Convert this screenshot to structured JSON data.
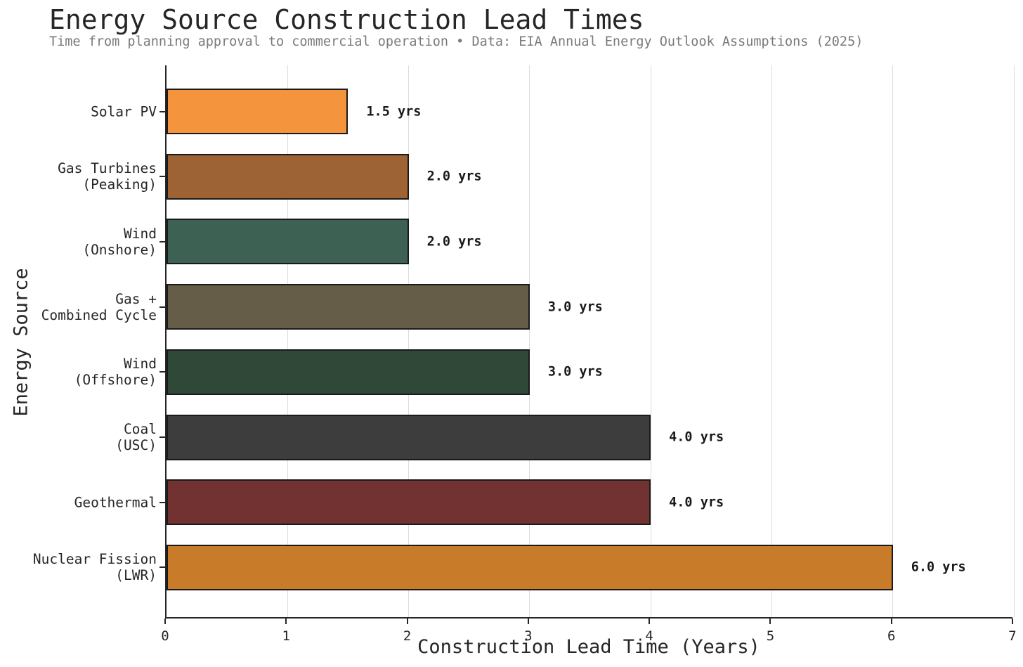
{
  "chart_data": {
    "type": "bar",
    "orientation": "horizontal",
    "title": "Energy Source Construction Lead Times",
    "subtitle": "Time from planning approval to commercial operation • Data: EIA Annual Energy Outlook Assumptions (2025)",
    "xlabel": "Construction Lead Time (Years)",
    "ylabel": "Energy Source",
    "xlim": [
      0,
      7
    ],
    "xticks": [
      0,
      1,
      2,
      3,
      4,
      5,
      6,
      7
    ],
    "grid": true,
    "legend": "none",
    "categories": [
      "Solar PV",
      "Gas Turbines\n(Peaking)",
      "Wind\n(Onshore)",
      "Gas +\nCombined Cycle",
      "Wind\n(Offshore)",
      "Coal\n(USC)",
      "Geothermal",
      "Nuclear Fission\n(LWR)"
    ],
    "values": [
      1.5,
      2.0,
      2.0,
      3.0,
      3.0,
      4.0,
      4.0,
      6.0
    ],
    "value_labels": [
      "1.5 yrs",
      "2.0 yrs",
      "2.0 yrs",
      "3.0 yrs",
      "3.0 yrs",
      "4.0 yrs",
      "4.0 yrs",
      "6.0 yrs"
    ],
    "bar_colors": [
      "#f4943d",
      "#9d6334",
      "#3d6253",
      "#665d48",
      "#2f4838",
      "#3d3d3d",
      "#713231",
      "#c87b28"
    ],
    "bar_edge_color": "#1a1a1a"
  },
  "colors": {
    "background": "#ffffff",
    "grid": "#dcdcdc",
    "spine": "#262626",
    "title_text": "#262626",
    "subtitle_text": "#7a7a7a",
    "value_text": "#1a1a1a"
  }
}
